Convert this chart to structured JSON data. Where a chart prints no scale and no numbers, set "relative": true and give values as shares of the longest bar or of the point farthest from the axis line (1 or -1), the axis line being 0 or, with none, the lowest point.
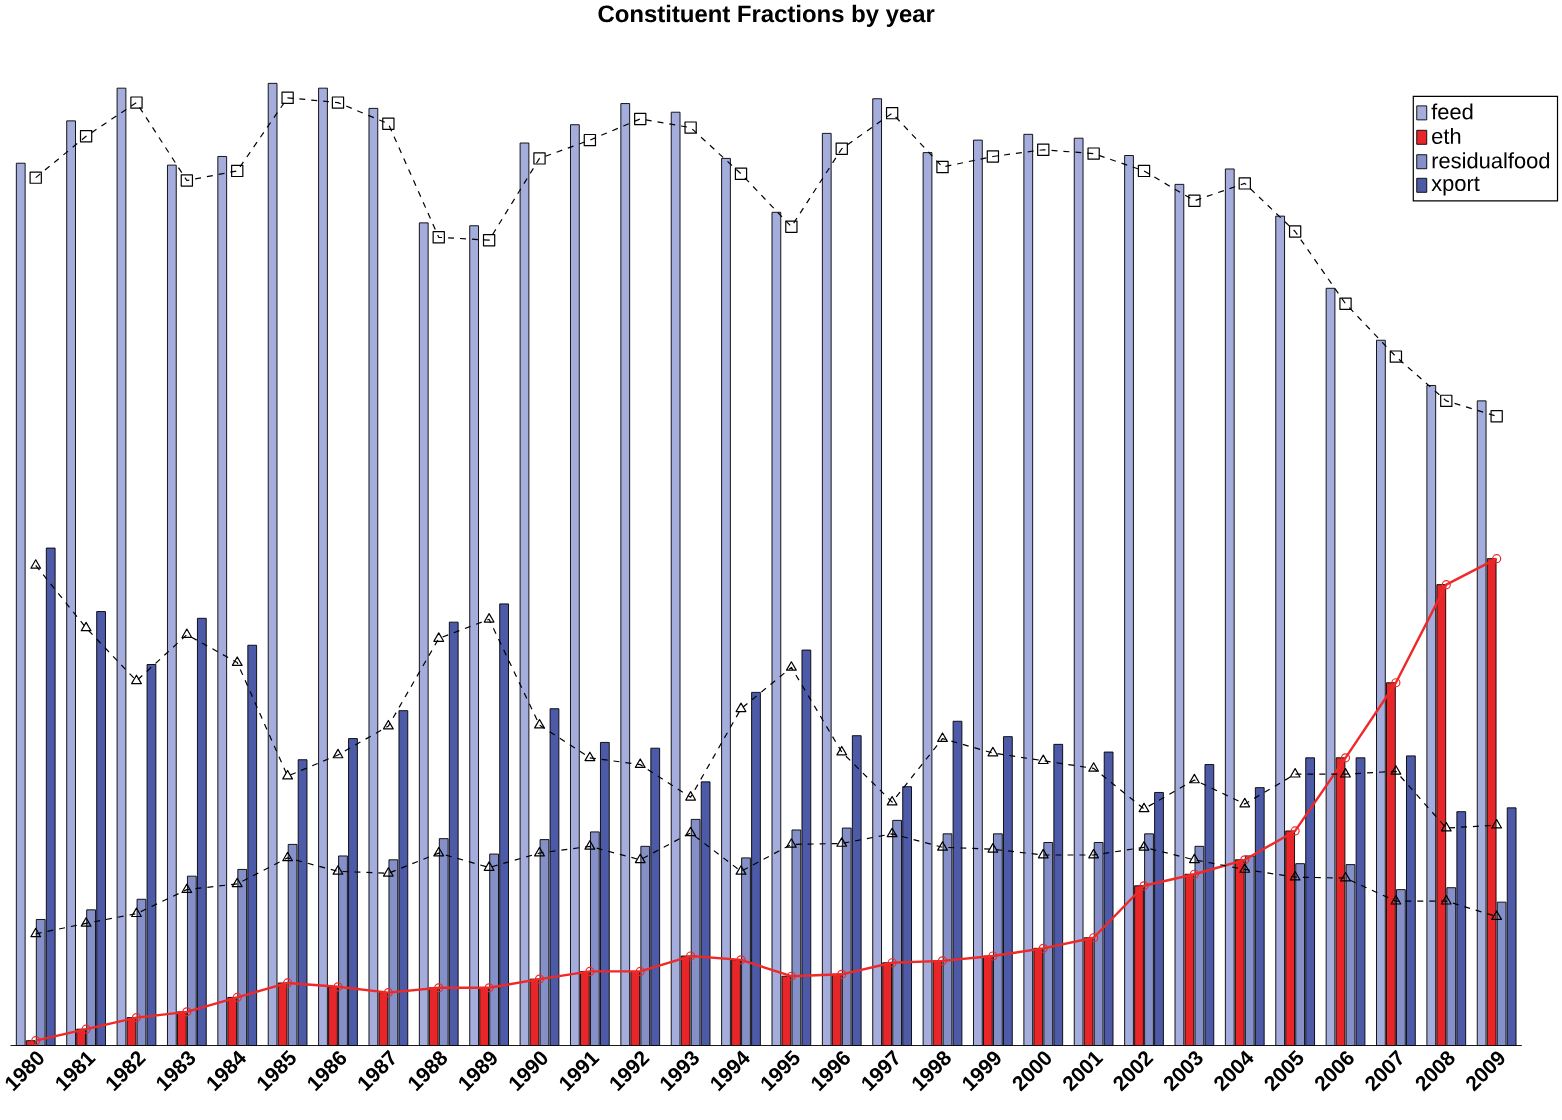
{
  "chart_data": {
    "type": "bar",
    "title": "Constituent Fractions by year",
    "relative": true,
    "legend": "top right",
    "categories": [
      "1980",
      "1981",
      "1982",
      "1983",
      "1984",
      "1985",
      "1986",
      "1987",
      "1988",
      "1989",
      "1990",
      "1991",
      "1992",
      "1993",
      "1994",
      "1995",
      "1996",
      "1997",
      "1998",
      "1999",
      "2000",
      "2001",
      "2002",
      "2003",
      "2004",
      "2005",
      "2006",
      "2007",
      "2008",
      "2009"
    ],
    "series": [
      {
        "name": "feed",
        "color": "#a4addb",
        "values": [
          0.917,
          0.961,
          0.995,
          0.915,
          0.924,
          1.0,
          0.995,
          0.974,
          0.855,
          0.852,
          0.938,
          0.957,
          0.979,
          0.97,
          0.922,
          0.866,
          0.948,
          0.984,
          0.928,
          0.941,
          0.947,
          0.943,
          0.925,
          0.895,
          0.911,
          0.862,
          0.787,
          0.733,
          0.686,
          0.67
        ]
      },
      {
        "name": "eth",
        "color": "#e8262a",
        "values": [
          0.005,
          0.017,
          0.029,
          0.035,
          0.05,
          0.065,
          0.061,
          0.055,
          0.06,
          0.06,
          0.069,
          0.077,
          0.077,
          0.093,
          0.089,
          0.072,
          0.074,
          0.086,
          0.088,
          0.093,
          0.101,
          0.112,
          0.166,
          0.178,
          0.193,
          0.223,
          0.299,
          0.377,
          0.479,
          0.506
        ]
      },
      {
        "name": "residualfood",
        "color": "#8590c8",
        "values": [
          0.131,
          0.141,
          0.152,
          0.176,
          0.183,
          0.209,
          0.197,
          0.193,
          0.215,
          0.199,
          0.214,
          0.222,
          0.207,
          0.235,
          0.195,
          0.224,
          0.226,
          0.234,
          0.22,
          0.22,
          0.211,
          0.211,
          0.22,
          0.207,
          0.197,
          0.189,
          0.188,
          0.162,
          0.164,
          0.149
        ]
      },
      {
        "name": "xport",
        "color": "#4c5aa8",
        "values": [
          0.517,
          0.451,
          0.396,
          0.444,
          0.416,
          0.297,
          0.319,
          0.348,
          0.44,
          0.459,
          0.35,
          0.315,
          0.309,
          0.274,
          0.367,
          0.411,
          0.322,
          0.269,
          0.337,
          0.321,
          0.313,
          0.305,
          0.263,
          0.292,
          0.268,
          0.299,
          0.299,
          0.301,
          0.243,
          0.247
        ]
      },
      {
        "type": "line",
        "color": "#000000",
        "marker": "square",
        "line_style": "dashed",
        "values": [
          0.902,
          0.945,
          0.98,
          0.899,
          0.909,
          0.985,
          0.98,
          0.958,
          0.84,
          0.837,
          0.922,
          0.941,
          0.963,
          0.954,
          0.906,
          0.851,
          0.932,
          0.969,
          0.913,
          0.924,
          0.931,
          0.927,
          0.909,
          0.878,
          0.896,
          0.846,
          0.771,
          0.716,
          0.67,
          0.654
        ]
      },
      {
        "type": "line",
        "color": "#f02828",
        "marker": "circle",
        "line_style": "solid",
        "values": [
          0.005,
          0.017,
          0.029,
          0.035,
          0.05,
          0.065,
          0.061,
          0.055,
          0.06,
          0.06,
          0.069,
          0.077,
          0.077,
          0.093,
          0.089,
          0.072,
          0.074,
          0.086,
          0.088,
          0.093,
          0.101,
          0.112,
          0.166,
          0.178,
          0.193,
          0.223,
          0.299,
          0.377,
          0.479,
          0.506
        ]
      },
      {
        "type": "line",
        "color": "#000000",
        "marker": "triangle",
        "line_style": "dashed",
        "values": [
          0.116,
          0.127,
          0.137,
          0.162,
          0.168,
          0.195,
          0.181,
          0.179,
          0.2,
          0.185,
          0.2,
          0.207,
          0.193,
          0.221,
          0.181,
          0.209,
          0.21,
          0.22,
          0.206,
          0.204,
          0.198,
          0.198,
          0.206,
          0.193,
          0.183,
          0.175,
          0.174,
          0.15,
          0.15,
          0.134
        ]
      },
      {
        "type": "line",
        "color": "#000000",
        "marker": "triangle",
        "line_style": "dashed",
        "values": [
          0.499,
          0.434,
          0.379,
          0.427,
          0.398,
          0.28,
          0.302,
          0.332,
          0.423,
          0.443,
          0.333,
          0.299,
          0.292,
          0.258,
          0.35,
          0.393,
          0.305,
          0.253,
          0.319,
          0.304,
          0.296,
          0.288,
          0.246,
          0.276,
          0.251,
          0.282,
          0.282,
          0.285,
          0.226,
          0.229
        ]
      }
    ]
  }
}
